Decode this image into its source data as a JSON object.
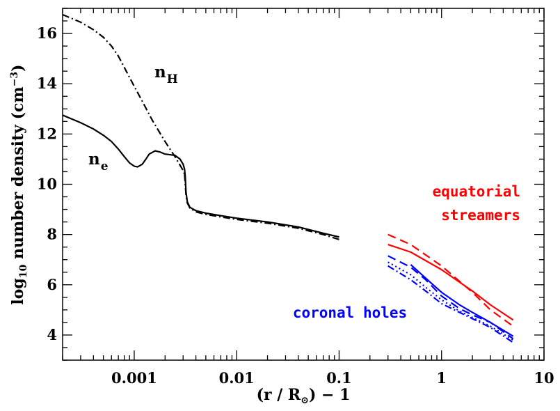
{
  "chart_data": {
    "type": "line",
    "xscale": "log",
    "xlim": [
      0.0002,
      10
    ],
    "ylim": [
      3,
      17
    ],
    "grid": false,
    "xlabel": {
      "pre": "(r / R",
      "sub": "⊙",
      "post": ") − 1"
    },
    "ylabel": {
      "pre": "log",
      "sub": "10",
      "mid": " number density  (cm",
      "sup": "−3",
      "post": ")"
    },
    "xticks": [
      {
        "value": 0.001,
        "label": "0.001"
      },
      {
        "value": 0.01,
        "label": "0.01"
      },
      {
        "value": 0.1,
        "label": "0.1"
      },
      {
        "value": 1,
        "label": "1"
      },
      {
        "value": 10,
        "label": "10"
      }
    ],
    "yticks": [
      {
        "value": 4,
        "label": "4"
      },
      {
        "value": 6,
        "label": "6"
      },
      {
        "value": 8,
        "label": "8"
      },
      {
        "value": 10,
        "label": "10"
      },
      {
        "value": 12,
        "label": "12"
      },
      {
        "value": 14,
        "label": "14"
      },
      {
        "value": 16,
        "label": "16"
      }
    ],
    "annotations": {
      "nH": {
        "main": "n",
        "sub": "H"
      },
      "ne": {
        "main": "n",
        "sub": "e"
      },
      "streamers": [
        "equatorial",
        "streamers"
      ],
      "holes": "coronal holes"
    },
    "colors": {
      "black": "#000000",
      "red": "#ff0000",
      "blue": "#0000ff"
    },
    "series": [
      {
        "group": "nH",
        "color": "black",
        "dash": "dashdot",
        "points": [
          [
            0.0002,
            16.75
          ],
          [
            0.0003,
            16.45
          ],
          [
            0.0004,
            16.15
          ],
          [
            0.0005,
            15.85
          ],
          [
            0.0006,
            15.5
          ],
          [
            0.0007,
            15.1
          ],
          [
            0.0008,
            14.65
          ],
          [
            0.001,
            13.9
          ],
          [
            0.0012,
            13.3
          ],
          [
            0.0015,
            12.55
          ],
          [
            0.002,
            11.7
          ],
          [
            0.0025,
            11.1
          ],
          [
            0.003,
            10.55
          ],
          [
            0.0031,
            10.4
          ]
        ]
      },
      {
        "group": "ne",
        "color": "black",
        "dash": "solid",
        "points": [
          [
            0.0002,
            12.75
          ],
          [
            0.0003,
            12.45
          ],
          [
            0.0004,
            12.2
          ],
          [
            0.0005,
            11.95
          ],
          [
            0.0006,
            11.7
          ],
          [
            0.0007,
            11.4
          ],
          [
            0.0008,
            11.1
          ],
          [
            0.0009,
            10.85
          ],
          [
            0.001,
            10.72
          ],
          [
            0.00108,
            10.69
          ],
          [
            0.0012,
            10.8
          ],
          [
            0.0013,
            11.0
          ],
          [
            0.0014,
            11.2
          ],
          [
            0.0016,
            11.33
          ],
          [
            0.0018,
            11.28
          ],
          [
            0.002,
            11.2
          ],
          [
            0.0022,
            11.18
          ],
          [
            0.0025,
            11.15
          ],
          [
            0.0028,
            11.0
          ],
          [
            0.003,
            10.8
          ],
          [
            0.0031,
            10.6
          ],
          [
            0.00315,
            10.3
          ],
          [
            0.0032,
            9.7
          ],
          [
            0.0033,
            9.3
          ],
          [
            0.0035,
            9.08
          ],
          [
            0.004,
            8.95
          ],
          [
            0.005,
            8.85
          ],
          [
            0.007,
            8.75
          ],
          [
            0.01,
            8.65
          ],
          [
            0.02,
            8.5
          ],
          [
            0.04,
            8.3
          ],
          [
            0.07,
            8.05
          ],
          [
            0.1,
            7.9
          ]
        ]
      },
      {
        "group": "nH",
        "color": "black",
        "dash": "dashdot",
        "points": [
          [
            0.0031,
            10.4
          ],
          [
            0.0032,
            9.6
          ],
          [
            0.0033,
            9.25
          ],
          [
            0.0035,
            9.05
          ],
          [
            0.004,
            8.9
          ],
          [
            0.005,
            8.8
          ],
          [
            0.007,
            8.7
          ],
          [
            0.01,
            8.6
          ],
          [
            0.02,
            8.45
          ],
          [
            0.04,
            8.25
          ],
          [
            0.07,
            8.0
          ],
          [
            0.1,
            7.8
          ]
        ]
      },
      {
        "group": "equatorial streamers",
        "color": "red",
        "dash": "solid",
        "points": [
          [
            0.3,
            7.6
          ],
          [
            0.5,
            7.3
          ],
          [
            1,
            6.6
          ],
          [
            2,
            5.75
          ],
          [
            3,
            5.2
          ],
          [
            5,
            4.6
          ]
        ]
      },
      {
        "group": "equatorial streamers",
        "color": "red",
        "dash": "dashed",
        "points": [
          [
            0.3,
            8.0
          ],
          [
            0.5,
            7.6
          ],
          [
            1,
            6.75
          ],
          [
            2,
            5.7
          ],
          [
            3,
            5.0
          ],
          [
            5,
            4.35
          ]
        ]
      },
      {
        "group": "coronal holes",
        "color": "blue",
        "dash": "solid",
        "points": [
          [
            0.5,
            6.8
          ],
          [
            0.8,
            6.05
          ],
          [
            1,
            5.7
          ],
          [
            1.5,
            5.2
          ],
          [
            2,
            4.9
          ],
          [
            3,
            4.5
          ],
          [
            5,
            3.95
          ]
        ]
      },
      {
        "group": "coronal holes",
        "color": "blue",
        "dash": "dashed",
        "points": [
          [
            0.3,
            7.15
          ],
          [
            0.5,
            6.7
          ],
          [
            0.7,
            6.2
          ],
          [
            1,
            5.55
          ],
          [
            1.5,
            5.05
          ],
          [
            2,
            4.8
          ],
          [
            3,
            4.5
          ],
          [
            5,
            3.85
          ]
        ]
      },
      {
        "group": "coronal holes",
        "color": "blue",
        "dash": "dotted",
        "points": [
          [
            0.3,
            6.9
          ],
          [
            0.5,
            6.4
          ],
          [
            0.7,
            5.9
          ],
          [
            1,
            5.4
          ],
          [
            1.5,
            4.95
          ],
          [
            2,
            4.7
          ],
          [
            3,
            4.35
          ],
          [
            5,
            3.8
          ]
        ]
      },
      {
        "group": "coronal holes",
        "color": "blue",
        "dash": "dashdot",
        "points": [
          [
            0.3,
            6.75
          ],
          [
            0.5,
            6.2
          ],
          [
            0.7,
            5.75
          ],
          [
            1,
            5.25
          ],
          [
            1.5,
            4.9
          ],
          [
            2,
            4.65
          ],
          [
            3,
            4.3
          ],
          [
            5,
            3.7
          ]
        ]
      }
    ]
  }
}
